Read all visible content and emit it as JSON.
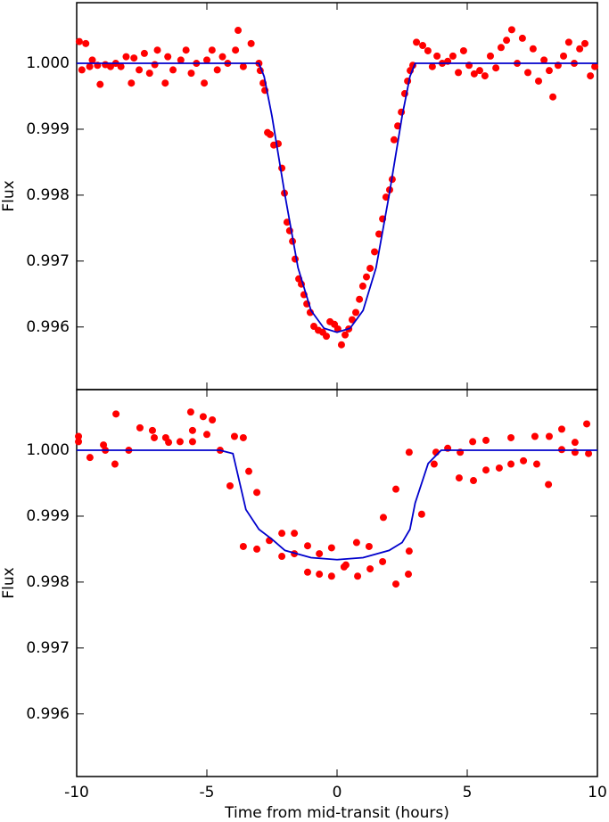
{
  "chart_data": [
    {
      "type": "scatter",
      "ylabel": "Flux",
      "xlim": [
        -10,
        10
      ],
      "ylim": [
        0.99505,
        1.00092
      ],
      "xticks": [
        -10,
        -5,
        0,
        5,
        10
      ],
      "show_xtick_labels": false,
      "yticks": [
        {
          "value": 1,
          "label": "1.000"
        },
        0.999,
        0.998,
        0.997,
        0.996
      ],
      "series": [
        {
          "style": "markers",
          "color": "#ff0000",
          "x": [
            -9.9,
            -9.8,
            -9.65,
            -9.5,
            -9.4,
            -9.2,
            -9.1,
            -8.9,
            -8.7,
            -8.5,
            -8.3,
            -8.1,
            -7.9,
            -7.8,
            -7.6,
            -7.4,
            -7.2,
            -7.0,
            -6.9,
            -6.6,
            -6.5,
            -6.3,
            -6.0,
            -5.8,
            -5.6,
            -5.4,
            -5.1,
            -5.0,
            -4.8,
            -4.6,
            -4.4,
            -4.2,
            -3.9,
            -3.8,
            -3.6,
            -3.3,
            -3.0,
            -2.95,
            -2.84,
            -2.77,
            -2.67,
            -2.57,
            -2.43,
            -2.26,
            -2.12,
            -2.02,
            -1.92,
            -1.82,
            -1.71,
            -1.61,
            -1.47,
            -1.37,
            -1.27,
            -1.16,
            -1.03,
            -0.89,
            -0.72,
            -0.55,
            -0.41,
            -0.27,
            -0.1,
            0.03,
            0.17,
            0.31,
            0.45,
            0.58,
            0.72,
            0.86,
            0.99,
            1.13,
            1.27,
            1.44,
            1.61,
            1.75,
            1.88,
            2.02,
            2.12,
            2.19,
            2.33,
            2.47,
            2.6,
            2.71,
            2.81,
            2.91,
            3.05,
            3.29,
            3.49,
            3.66,
            3.84,
            4.04,
            4.25,
            4.45,
            4.66,
            4.86,
            5.07,
            5.27,
            5.48,
            5.68,
            5.89,
            6.1,
            6.3,
            6.51,
            6.71,
            6.92,
            7.12,
            7.33,
            7.53,
            7.74,
            7.95,
            8.15,
            8.29,
            8.49,
            8.7,
            8.9,
            9.11,
            9.32,
            9.52,
            9.73,
            9.9
          ],
          "values": [
            1.00033,
            0.9999,
            1.0003,
            0.99995,
            1.00005,
            0.99997,
            0.99968,
            0.99998,
            0.99995,
            1.0,
            0.99995,
            1.0001,
            0.9997,
            1.00008,
            0.9999,
            1.00015,
            0.99985,
            0.99998,
            1.0002,
            0.9997,
            1.0001,
            0.9999,
            1.00005,
            1.0002,
            0.99985,
            1.0,
            0.9997,
            1.00005,
            1.0002,
            0.9999,
            1.0001,
            1.0,
            1.0002,
            1.0005,
            0.99995,
            1.0003,
            1.0,
            0.99989,
            0.9997,
            0.99959,
            0.99895,
            0.99892,
            0.99876,
            0.99878,
            0.99841,
            0.99803,
            0.99759,
            0.99746,
            0.9973,
            0.99703,
            0.99673,
            0.99665,
            0.99649,
            0.99635,
            0.99622,
            0.99601,
            0.99595,
            0.99592,
            0.99586,
            0.99608,
            0.99604,
            0.99597,
            0.99573,
            0.99588,
            0.99597,
            0.99611,
            0.99622,
            0.99642,
            0.99662,
            0.99676,
            0.99689,
            0.99714,
            0.99741,
            0.99764,
            0.99797,
            0.99808,
            0.99824,
            0.99884,
            0.99905,
            0.99926,
            0.99954,
            0.99973,
            0.99989,
            0.99997,
            1.00032,
            1.00027,
            1.00019,
            0.99995,
            1.00011,
            1.0,
            1.00003,
            1.00011,
            0.99986,
            1.00019,
            0.99997,
            0.99984,
            0.99989,
            0.99981,
            1.00011,
            0.99993,
            1.00024,
            1.00035,
            1.00051,
            1.0,
            1.00038,
            0.99986,
            1.00022,
            0.99973,
            1.00005,
            0.99989,
            0.99949,
            0.99997,
            1.00011,
            1.00032,
            1.0,
            1.00022,
            1.0003,
            0.99981,
            0.99995
          ]
        },
        {
          "style": "line",
          "color": "#0000cc",
          "x": [
            -10,
            -3,
            -2.8,
            -2.5,
            -2,
            -1.5,
            -1,
            -0.5,
            0,
            0.5,
            1,
            1.5,
            2,
            2.5,
            2.8,
            3,
            10
          ],
          "values": [
            1.0,
            1.0,
            0.9998,
            0.9992,
            0.998,
            0.9969,
            0.99625,
            0.99598,
            0.99592,
            0.99598,
            0.99625,
            0.9969,
            0.998,
            0.9992,
            0.9998,
            1.0,
            1.0
          ]
        }
      ]
    },
    {
      "type": "scatter",
      "ylabel": "Flux",
      "xlabel": "Time from mid-transit (hours)",
      "xlim": [
        -10,
        10
      ],
      "ylim": [
        0.99505,
        1.00092
      ],
      "xticks": [
        -10,
        -5,
        0,
        5,
        10
      ],
      "show_xtick_labels": true,
      "yticks": [
        {
          "value": 1,
          "label": "1.000"
        },
        0.999,
        0.998,
        0.997,
        0.996
      ],
      "series": [
        {
          "style": "markers",
          "color": "#ff0000",
          "x": [
            -9.93,
            -9.93,
            -9.49,
            -8.97,
            -8.9,
            -8.53,
            -8.49,
            -8.0,
            -7.57,
            -7.09,
            -7.02,
            -6.58,
            -6.47,
            -6.03,
            -5.62,
            -5.55,
            -5.55,
            -5.14,
            -5.0,
            -4.79,
            -4.49,
            -4.11,
            -3.94,
            -3.6,
            -3.39,
            -3.08,
            -3.6,
            -3.08,
            -2.6,
            -2.12,
            -2.12,
            -1.64,
            -1.64,
            -1.13,
            -1.13,
            -0.68,
            -0.68,
            -0.21,
            -0.21,
            0.27,
            0.34,
            0.75,
            0.79,
            1.23,
            1.27,
            1.75,
            1.78,
            2.26,
            2.26,
            2.77,
            2.74,
            2.77,
            3.25,
            3.73,
            3.8,
            4.25,
            4.69,
            4.73,
            5.21,
            5.24,
            5.72,
            5.72,
            6.23,
            6.68,
            6.68,
            7.16,
            7.6,
            7.67,
            8.12,
            8.15,
            8.63,
            8.63,
            9.14,
            9.14,
            9.59,
            9.66
          ],
          "values": [
            1.00021,
            1.00013,
            0.99989,
            1.00008,
            1.0,
            0.99979,
            1.00055,
            1.0,
            1.00034,
            1.0003,
            1.00019,
            1.00019,
            1.00012,
            1.00013,
            1.00058,
            1.0003,
            1.00013,
            1.00051,
            1.00024,
            1.00046,
            1.0,
            0.99946,
            1.00021,
            1.00019,
            0.99968,
            0.99936,
            0.99854,
            0.9985,
            0.99863,
            0.99874,
            0.99839,
            0.99874,
            0.99843,
            0.99855,
            0.99815,
            0.99843,
            0.99812,
            0.99852,
            0.99809,
            0.99823,
            0.99826,
            0.9986,
            0.99809,
            0.99854,
            0.9982,
            0.99831,
            0.99898,
            0.99941,
            0.99797,
            0.99847,
            0.99812,
            0.99997,
            0.99903,
            0.99979,
            0.99997,
            1.00003,
            0.99958,
            0.99997,
            1.00013,
            0.99954,
            0.9997,
            1.00015,
            0.99973,
            1.00019,
            0.99979,
            0.99984,
            1.00021,
            0.99979,
            0.99948,
            1.00021,
            1.00032,
            1.00001,
            1.00012,
            0.99997,
            1.0004,
            0.99995
          ]
        },
        {
          "style": "line",
          "color": "#0000cc",
          "x": [
            -10,
            -4.5,
            -4,
            -3.5,
            -3,
            -2.5,
            -2,
            -1,
            0,
            1,
            2,
            2.5,
            2.8,
            3,
            3.5,
            4,
            10
          ],
          "values": [
            1.0,
            1.0,
            0.99995,
            0.9991,
            0.9988,
            0.99865,
            0.99848,
            0.99837,
            0.99834,
            0.99837,
            0.99848,
            0.9986,
            0.9988,
            0.9992,
            0.9998,
            1.0,
            1.0
          ]
        }
      ]
    }
  ]
}
